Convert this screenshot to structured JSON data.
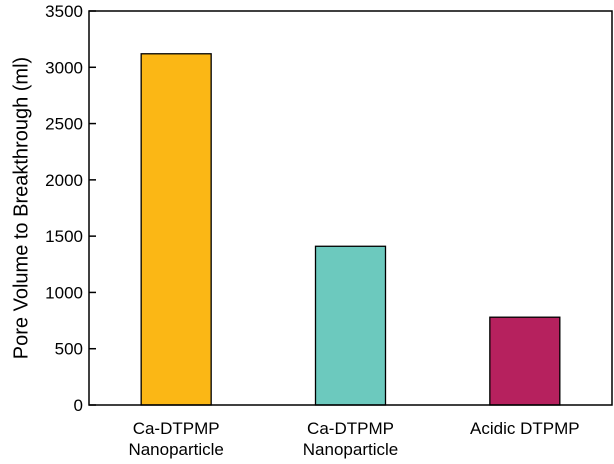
{
  "chart_data": {
    "type": "bar",
    "title": "",
    "xlabel": "",
    "ylabel": "Pore Volume to Breakthrough (ml)",
    "ylim": [
      0,
      3500
    ],
    "yticks": [
      0,
      500,
      1000,
      1500,
      2000,
      2500,
      3000,
      3500
    ],
    "grid": false,
    "legend": "none",
    "categories": [
      [
        "Ca-DTPMP",
        "Nanoparticle"
      ],
      [
        "Ca-DTPMP",
        "Nanoparticle"
      ],
      [
        "Acidic DTPMP"
      ]
    ],
    "values": [
      3120,
      1410,
      780
    ],
    "colors": [
      "#FBB715",
      "#6CC9BE",
      "#B6215E"
    ]
  }
}
